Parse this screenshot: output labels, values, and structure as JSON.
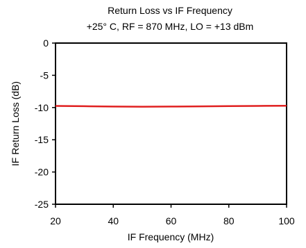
{
  "chart_data": {
    "type": "line",
    "title": "Return Loss vs IF Frequency",
    "subtitle": "+25° C, RF = 870 MHz, LO = +13 dBm",
    "xlabel": "IF Frequency (MHz)",
    "ylabel": "IF Return Loss (dB)",
    "xlim": [
      20,
      100
    ],
    "ylim": [
      -25,
      0
    ],
    "xticks": [
      "20",
      "40",
      "60",
      "80",
      "100"
    ],
    "yticks": [
      "0",
      "-5",
      "-10",
      "-15",
      "-20",
      "-25"
    ],
    "grid": false,
    "line_color": "#e02020",
    "series": [
      {
        "x": [
          20,
          30,
          40,
          50,
          60,
          70,
          80,
          90,
          100
        ],
        "y": [
          -9.75,
          -9.8,
          -9.85,
          -9.87,
          -9.85,
          -9.82,
          -9.78,
          -9.75,
          -9.72
        ]
      }
    ]
  }
}
